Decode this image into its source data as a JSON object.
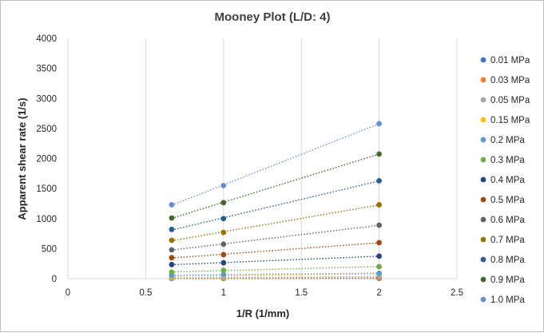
{
  "chart_data": {
    "type": "scatter",
    "title": "Mooney Plot (L/D: 4)",
    "xlabel": "1/R (1/mm)",
    "ylabel": "Apparent shear rate (1/s)",
    "xlim": [
      0,
      2.5
    ],
    "ylim": [
      0,
      4000
    ],
    "x_ticks": [
      "0",
      "0.5",
      "1",
      "1.5",
      "2",
      "2.5"
    ],
    "y_ticks": [
      "0",
      "500",
      "1000",
      "1500",
      "2000",
      "2500",
      "3000",
      "3500",
      "4000"
    ],
    "grid": "vertical",
    "legend_position": "right",
    "trendlines": "dotted linear",
    "x": [
      0.667,
      1,
      2
    ],
    "series": [
      {
        "name": "0.01 MPa",
        "color": "#4472C4",
        "values": [
          2,
          3,
          5
        ]
      },
      {
        "name": "0.03 MPa",
        "color": "#ED7D31",
        "values": [
          6,
          9,
          15
        ]
      },
      {
        "name": "0.05 MPa",
        "color": "#A5A5A5",
        "values": [
          14,
          20,
          35
        ]
      },
      {
        "name": "0.15 MPa",
        "color": "#FFC000",
        "values": [
          40,
          55,
          80
        ]
      },
      {
        "name": "0.2 MPa",
        "color": "#5B9BD5",
        "values": [
          55,
          70,
          90
        ]
      },
      {
        "name": "0.3 MPa",
        "color": "#70AD47",
        "values": [
          110,
          140,
          200
        ]
      },
      {
        "name": "0.4 MPa",
        "color": "#264478",
        "values": [
          235,
          265,
          375
        ]
      },
      {
        "name": "0.5 MPa",
        "color": "#9E480E",
        "values": [
          350,
          400,
          600
        ]
      },
      {
        "name": "0.6 MPa",
        "color": "#636363",
        "values": [
          480,
          575,
          890
        ]
      },
      {
        "name": "0.7 MPa",
        "color": "#997300",
        "values": [
          640,
          770,
          1230
        ]
      },
      {
        "name": "0.8 MPa",
        "color": "#255E91",
        "values": [
          820,
          1000,
          1630
        ]
      },
      {
        "name": "0.9 MPa",
        "color": "#43682B",
        "values": [
          1010,
          1265,
          2075
        ]
      },
      {
        "name": "1.0 MPa",
        "color": "#698ED0",
        "values": [
          1230,
          1550,
          2580
        ]
      }
    ]
  }
}
